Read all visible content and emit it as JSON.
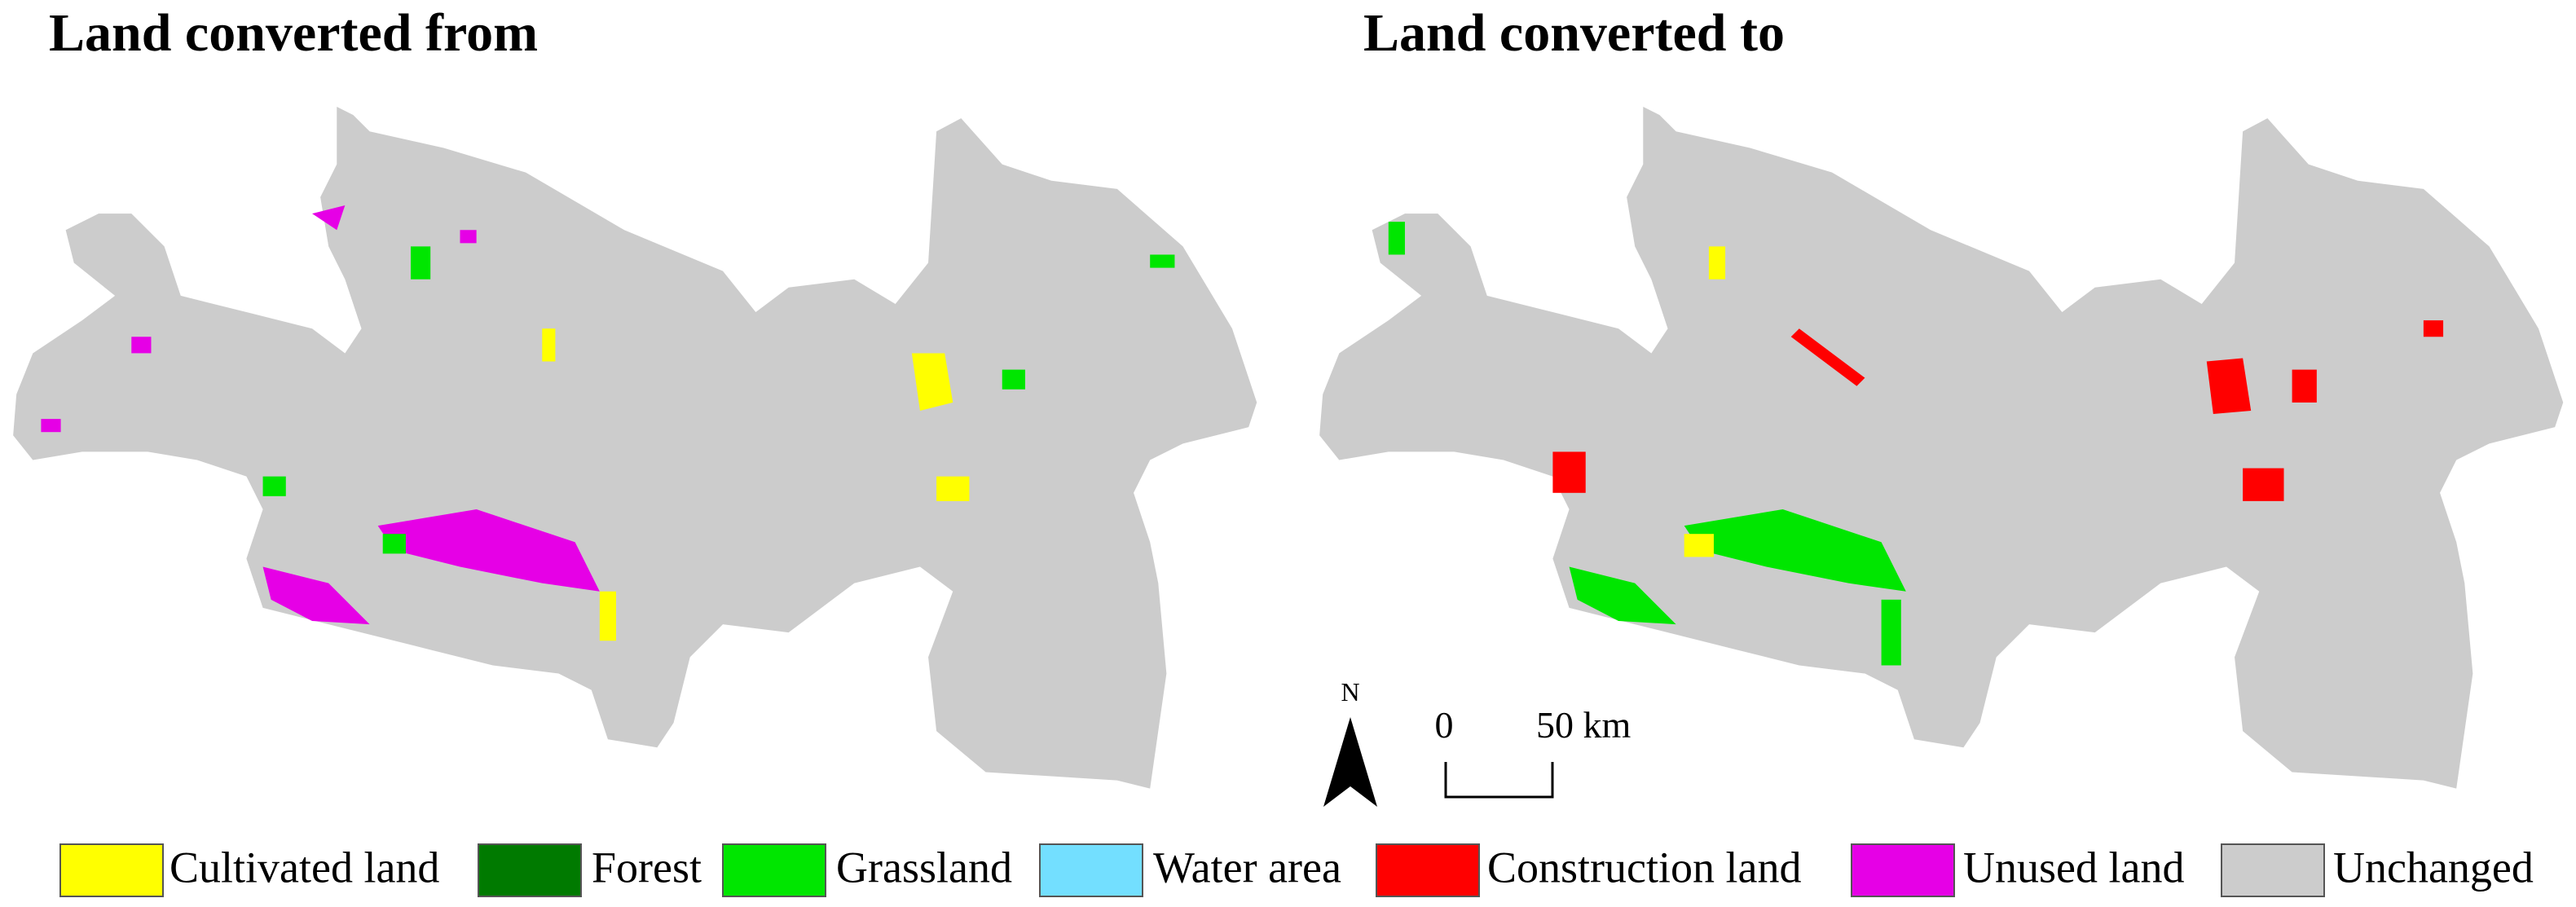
{
  "panels": [
    {
      "title": "Land converted from"
    },
    {
      "title": "Land converted to"
    }
  ],
  "north": "N",
  "scale_bar": {
    "start": "0",
    "end": "50 km"
  },
  "legend": [
    {
      "label": "Cultivated land",
      "color": "#ffff00"
    },
    {
      "label": "Forest",
      "color": "#007a00"
    },
    {
      "label": "Grassland",
      "color": "#00e600"
    },
    {
      "label": "Water area",
      "color": "#73dfff"
    },
    {
      "label": "Construction land",
      "color": "#ff0000"
    },
    {
      "label": "Unused land",
      "color": "#e600e6"
    },
    {
      "label": "Unchanged",
      "color": "#cccccc"
    }
  ]
}
